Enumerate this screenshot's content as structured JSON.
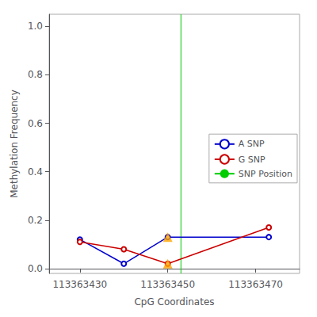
{
  "chart_data": {
    "type": "line",
    "xlabel": "CpG Coordinates",
    "ylabel": "Methylation Frequency",
    "series": [
      {
        "name": "A SNP",
        "color": "#0000CC",
        "marker": "circle",
        "x": [
          113363430,
          113363440,
          113363450,
          113363473
        ],
        "values": [
          0.12,
          0.02,
          0.13,
          0.13
        ]
      },
      {
        "name": "G SNP",
        "color": "#CC0000",
        "marker": "circle",
        "x": [
          113363430,
          113363440,
          113363450,
          113363473
        ],
        "values": [
          0.11,
          0.08,
          0.02,
          0.17
        ]
      },
      {
        "name": "SNP Position",
        "type": "vline",
        "color": "#00CC00",
        "x": [
          113363453
        ]
      },
      {
        "type": "scatter",
        "marker": "triangle",
        "color": "#FFA500",
        "x": [
          113363450,
          113363450
        ],
        "values": [
          0.13,
          0.02
        ]
      }
    ],
    "xlim": [
      113363423,
      113363480
    ],
    "xticks": [
      113363430,
      113363450,
      113363470
    ],
    "ylim": [
      -0.02,
      1.05
    ],
    "yticks": [
      {
        "value": 0.0,
        "label": "0.0"
      },
      0.2,
      0.4,
      0.6,
      0.8,
      {
        "value": 1.0,
        "label": "1.0"
      }
    ],
    "grid": false,
    "legend": "right"
  }
}
